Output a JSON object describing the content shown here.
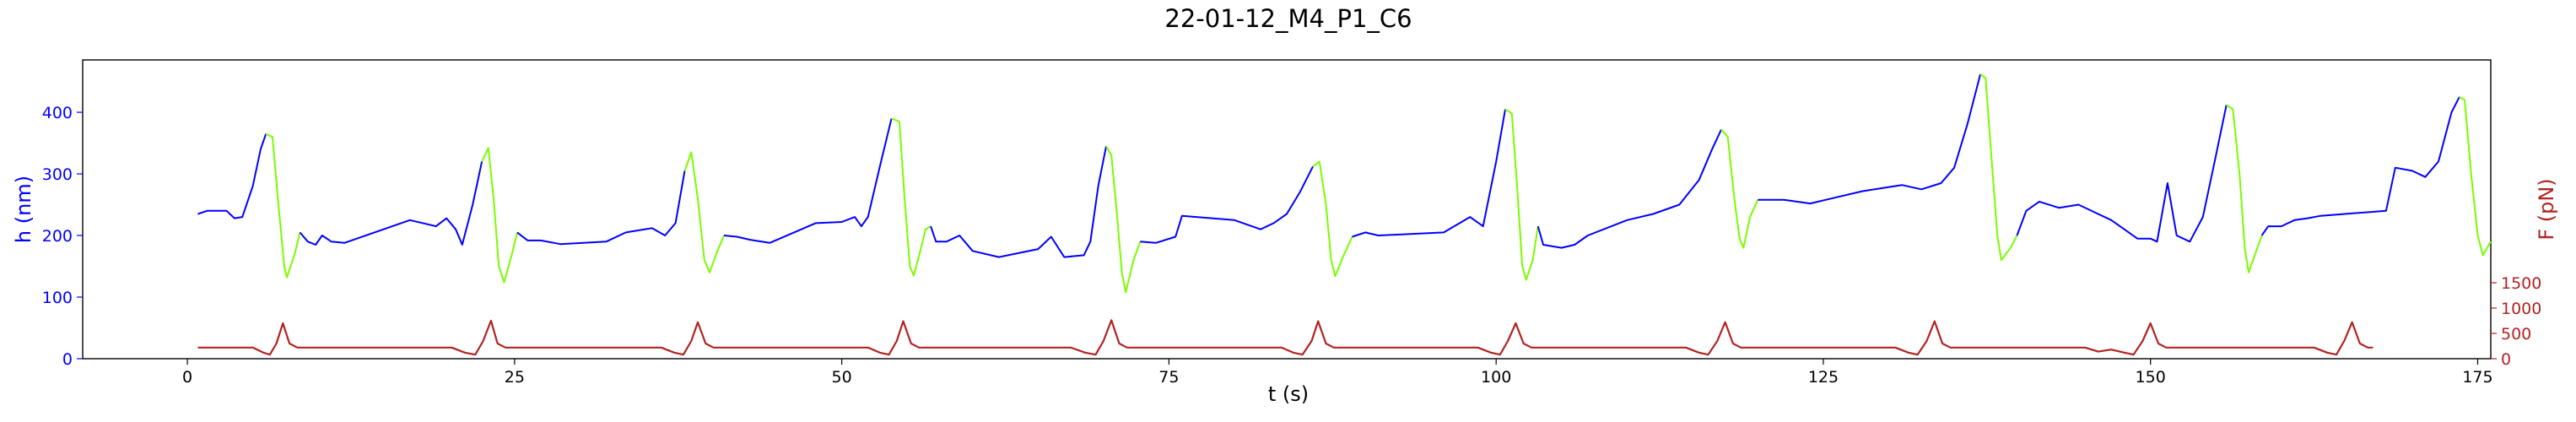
{
  "chart_data": {
    "type": "line",
    "title": "22-01-12_M4_P1_C6",
    "xlabel": "t (s)",
    "ylabel_left": "h (nm)",
    "ylabel_right": "F (pN)",
    "xlim": [
      -8,
      176
    ],
    "ylim_left": [
      0,
      485
    ],
    "ylim_right": [
      0,
      5900
    ],
    "x_ticks": [
      0,
      25,
      50,
      75,
      100,
      125,
      150,
      175
    ],
    "y_ticks_left": [
      0,
      100,
      200,
      300,
      400
    ],
    "y_ticks_right": [
      0,
      500,
      1000,
      1500
    ],
    "grid": false,
    "colors": {
      "height_approach": "#0000ff",
      "height_retract": "#7cfc00",
      "force": "#b22222",
      "left_axis": "#0000ff",
      "right_axis": "#b22222"
    },
    "height_segments": [
      {
        "phase": "approach",
        "points": [
          [
            0.8,
            235
          ],
          [
            1.5,
            240
          ],
          [
            3.0,
            240
          ],
          [
            3.6,
            228
          ],
          [
            4.2,
            230
          ],
          [
            5.0,
            280
          ],
          [
            5.6,
            340
          ],
          [
            6.0,
            365
          ]
        ]
      },
      {
        "phase": "retract",
        "points": [
          [
            6.0,
            365
          ],
          [
            6.5,
            360
          ],
          [
            7.0,
            240
          ],
          [
            7.4,
            150
          ],
          [
            7.6,
            132
          ],
          [
            8.2,
            170
          ],
          [
            8.6,
            205
          ]
        ]
      },
      {
        "phase": "approach",
        "points": [
          [
            8.6,
            205
          ],
          [
            9.2,
            190
          ],
          [
            9.8,
            185
          ],
          [
            10.3,
            200
          ],
          [
            11.0,
            190
          ],
          [
            12.0,
            188
          ],
          [
            17.0,
            225
          ],
          [
            19.0,
            215
          ],
          [
            19.8,
            228
          ],
          [
            20.5,
            210
          ],
          [
            21.0,
            185
          ],
          [
            21.8,
            250
          ],
          [
            22.5,
            320
          ]
        ]
      },
      {
        "phase": "retract",
        "points": [
          [
            22.5,
            320
          ],
          [
            23.0,
            342
          ],
          [
            23.4,
            260
          ],
          [
            23.8,
            150
          ],
          [
            24.2,
            124
          ],
          [
            24.8,
            170
          ],
          [
            25.2,
            205
          ]
        ]
      },
      {
        "phase": "approach",
        "points": [
          [
            25.2,
            205
          ],
          [
            26.0,
            192
          ],
          [
            27.0,
            192
          ],
          [
            28.5,
            186
          ],
          [
            32.0,
            190
          ],
          [
            33.5,
            205
          ],
          [
            35.5,
            212
          ],
          [
            36.5,
            200
          ],
          [
            37.3,
            220
          ],
          [
            38.0,
            305
          ]
        ]
      },
      {
        "phase": "retract",
        "points": [
          [
            38.0,
            305
          ],
          [
            38.5,
            335
          ],
          [
            39.0,
            260
          ],
          [
            39.5,
            160
          ],
          [
            39.9,
            140
          ],
          [
            40.5,
            175
          ],
          [
            41.0,
            200
          ]
        ]
      },
      {
        "phase": "approach",
        "points": [
          [
            41.0,
            200
          ],
          [
            42.0,
            198
          ],
          [
            43.0,
            193
          ],
          [
            44.5,
            188
          ],
          [
            48.0,
            220
          ],
          [
            50.0,
            222
          ],
          [
            51.0,
            230
          ],
          [
            51.5,
            215
          ],
          [
            52.0,
            230
          ],
          [
            53.0,
            320
          ],
          [
            53.8,
            390
          ]
        ]
      },
      {
        "phase": "retract",
        "points": [
          [
            53.8,
            390
          ],
          [
            54.4,
            385
          ],
          [
            54.8,
            260
          ],
          [
            55.2,
            150
          ],
          [
            55.5,
            135
          ],
          [
            56.0,
            175
          ],
          [
            56.4,
            210
          ],
          [
            56.8,
            215
          ]
        ]
      },
      {
        "phase": "approach",
        "points": [
          [
            56.8,
            215
          ],
          [
            57.2,
            190
          ],
          [
            58.0,
            190
          ],
          [
            59.0,
            200
          ],
          [
            60.0,
            175
          ],
          [
            62.0,
            165
          ],
          [
            65.0,
            178
          ],
          [
            66.0,
            198
          ],
          [
            67.0,
            165
          ],
          [
            68.5,
            168
          ],
          [
            69.0,
            190
          ],
          [
            69.6,
            280
          ],
          [
            70.2,
            345
          ]
        ]
      },
      {
        "phase": "retract",
        "points": [
          [
            70.2,
            345
          ],
          [
            70.6,
            330
          ],
          [
            71.0,
            240
          ],
          [
            71.4,
            140
          ],
          [
            71.7,
            108
          ],
          [
            72.3,
            160
          ],
          [
            72.8,
            190
          ]
        ]
      },
      {
        "phase": "approach",
        "points": [
          [
            72.8,
            190
          ],
          [
            74.0,
            188
          ],
          [
            75.5,
            198
          ],
          [
            76.0,
            232
          ],
          [
            80.0,
            225
          ],
          [
            82.0,
            210
          ],
          [
            83.0,
            220
          ],
          [
            84.0,
            235
          ],
          [
            85.0,
            270
          ],
          [
            86.0,
            312
          ]
        ]
      },
      {
        "phase": "retract",
        "points": [
          [
            86.0,
            312
          ],
          [
            86.5,
            320
          ],
          [
            87.0,
            250
          ],
          [
            87.4,
            160
          ],
          [
            87.7,
            134
          ],
          [
            88.4,
            170
          ],
          [
            89.0,
            198
          ]
        ]
      },
      {
        "phase": "approach",
        "points": [
          [
            89.0,
            198
          ],
          [
            90.0,
            205
          ],
          [
            91.0,
            200
          ],
          [
            96.0,
            205
          ],
          [
            98.0,
            230
          ],
          [
            99.0,
            215
          ],
          [
            100.0,
            320
          ],
          [
            100.7,
            405
          ]
        ]
      },
      {
        "phase": "retract",
        "points": [
          [
            100.7,
            405
          ],
          [
            101.2,
            398
          ],
          [
            101.6,
            280
          ],
          [
            102.0,
            150
          ],
          [
            102.3,
            128
          ],
          [
            102.8,
            160
          ],
          [
            103.2,
            215
          ]
        ]
      },
      {
        "phase": "approach",
        "points": [
          [
            103.2,
            215
          ],
          [
            103.6,
            185
          ],
          [
            105.0,
            180
          ],
          [
            106.0,
            185
          ],
          [
            107.0,
            200
          ],
          [
            110.0,
            225
          ],
          [
            112.0,
            235
          ],
          [
            114.0,
            250
          ],
          [
            115.5,
            290
          ],
          [
            116.5,
            340
          ],
          [
            117.2,
            372
          ]
        ]
      },
      {
        "phase": "retract",
        "points": [
          [
            117.2,
            372
          ],
          [
            117.7,
            360
          ],
          [
            118.2,
            260
          ],
          [
            118.6,
            195
          ],
          [
            118.9,
            180
          ],
          [
            119.4,
            230
          ],
          [
            120.0,
            258
          ]
        ]
      },
      {
        "phase": "approach",
        "points": [
          [
            120.0,
            258
          ],
          [
            122.0,
            258
          ],
          [
            124.0,
            252
          ],
          [
            128.0,
            272
          ],
          [
            131.0,
            282
          ],
          [
            132.5,
            275
          ],
          [
            134.0,
            285
          ],
          [
            135.0,
            310
          ],
          [
            136.0,
            380
          ],
          [
            137.0,
            462
          ]
        ]
      },
      {
        "phase": "retract",
        "points": [
          [
            137.0,
            462
          ],
          [
            137.4,
            455
          ],
          [
            137.8,
            340
          ],
          [
            138.3,
            200
          ],
          [
            138.6,
            160
          ],
          [
            139.3,
            180
          ],
          [
            139.8,
            200
          ]
        ]
      },
      {
        "phase": "approach",
        "points": [
          [
            139.8,
            200
          ],
          [
            140.5,
            240
          ],
          [
            141.5,
            255
          ],
          [
            143.0,
            245
          ],
          [
            144.5,
            250
          ],
          [
            146.0,
            235
          ],
          [
            147.0,
            225
          ],
          [
            148.0,
            210
          ],
          [
            149.0,
            195
          ],
          [
            150.0,
            195
          ],
          [
            150.5,
            190
          ],
          [
            151.3,
            285
          ],
          [
            152.0,
            200
          ],
          [
            153.0,
            190
          ],
          [
            154.0,
            230
          ],
          [
            155.0,
            330
          ],
          [
            155.8,
            412
          ]
        ]
      },
      {
        "phase": "retract",
        "points": [
          [
            155.8,
            412
          ],
          [
            156.3,
            405
          ],
          [
            156.8,
            300
          ],
          [
            157.2,
            180
          ],
          [
            157.5,
            140
          ],
          [
            158.0,
            170
          ],
          [
            158.5,
            200
          ]
        ]
      },
      {
        "phase": "approach",
        "points": [
          [
            158.5,
            200
          ],
          [
            159.0,
            215
          ],
          [
            160.0,
            215
          ],
          [
            161.0,
            225
          ],
          [
            162.0,
            228
          ],
          [
            163.0,
            232
          ],
          [
            168.0,
            240
          ],
          [
            168.7,
            310
          ],
          [
            170.0,
            305
          ],
          [
            171.0,
            295
          ],
          [
            172.0,
            320
          ],
          [
            173.0,
            400
          ],
          [
            173.6,
            425
          ]
        ]
      },
      {
        "phase": "retract",
        "points": [
          [
            173.6,
            425
          ],
          [
            174.0,
            420
          ],
          [
            174.5,
            300
          ],
          [
            175.0,
            200
          ],
          [
            175.4,
            168
          ],
          [
            176.0,
            190
          ]
        ]
      }
    ],
    "force_series": {
      "name": "",
      "points": [
        [
          0.8,
          220
        ],
        [
          5.0,
          220
        ],
        [
          5.8,
          120
        ],
        [
          6.3,
          80
        ],
        [
          6.8,
          300
        ],
        [
          7.3,
          700
        ],
        [
          7.8,
          300
        ],
        [
          8.4,
          220
        ],
        [
          20.2,
          220
        ],
        [
          21.2,
          120
        ],
        [
          22.0,
          80
        ],
        [
          22.6,
          350
        ],
        [
          23.2,
          750
        ],
        [
          23.7,
          300
        ],
        [
          24.3,
          220
        ],
        [
          36.2,
          220
        ],
        [
          37.2,
          120
        ],
        [
          37.9,
          80
        ],
        [
          38.5,
          350
        ],
        [
          39.0,
          720
        ],
        [
          39.6,
          300
        ],
        [
          40.2,
          220
        ],
        [
          52.0,
          220
        ],
        [
          52.9,
          120
        ],
        [
          53.6,
          80
        ],
        [
          54.2,
          350
        ],
        [
          54.7,
          740
        ],
        [
          55.3,
          300
        ],
        [
          55.9,
          220
        ],
        [
          67.5,
          220
        ],
        [
          68.6,
          120
        ],
        [
          69.4,
          80
        ],
        [
          70.0,
          350
        ],
        [
          70.6,
          760
        ],
        [
          71.2,
          300
        ],
        [
          71.8,
          220
        ],
        [
          83.6,
          220
        ],
        [
          84.5,
          120
        ],
        [
          85.2,
          80
        ],
        [
          85.9,
          350
        ],
        [
          86.4,
          740
        ],
        [
          87.0,
          300
        ],
        [
          87.6,
          220
        ],
        [
          98.6,
          220
        ],
        [
          99.6,
          120
        ],
        [
          100.3,
          80
        ],
        [
          100.9,
          350
        ],
        [
          101.5,
          700
        ],
        [
          102.1,
          300
        ],
        [
          102.7,
          220
        ],
        [
          114.5,
          220
        ],
        [
          115.5,
          120
        ],
        [
          116.2,
          80
        ],
        [
          116.9,
          350
        ],
        [
          117.5,
          720
        ],
        [
          118.1,
          300
        ],
        [
          118.7,
          220
        ],
        [
          130.5,
          220
        ],
        [
          131.5,
          120
        ],
        [
          132.2,
          80
        ],
        [
          132.9,
          350
        ],
        [
          133.5,
          740
        ],
        [
          134.1,
          300
        ],
        [
          134.7,
          220
        ],
        [
          145.0,
          220
        ],
        [
          146.0,
          140
        ],
        [
          147.0,
          180
        ],
        [
          148.0,
          120
        ],
        [
          148.7,
          80
        ],
        [
          149.4,
          350
        ],
        [
          150.0,
          700
        ],
        [
          150.6,
          300
        ],
        [
          151.2,
          220
        ],
        [
          162.5,
          220
        ],
        [
          163.5,
          120
        ],
        [
          164.2,
          80
        ],
        [
          164.8,
          350
        ],
        [
          165.4,
          720
        ],
        [
          166.0,
          300
        ],
        [
          166.6,
          220
        ],
        [
          167.0,
          220
        ]
      ]
    }
  }
}
